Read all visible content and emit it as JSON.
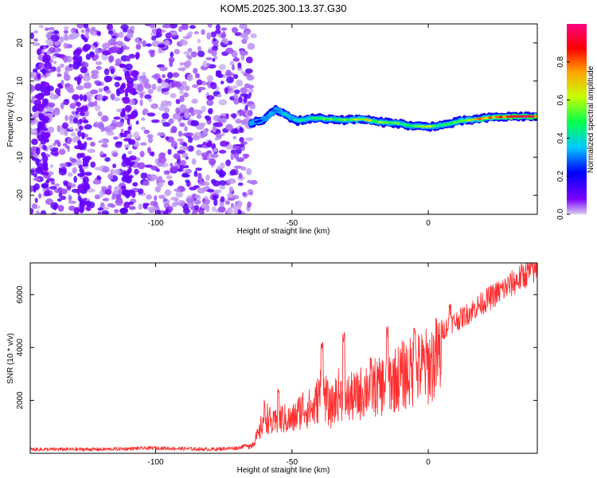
{
  "chart_data": [
    {
      "type": "heatmap",
      "title": "KOM5.2025.300.13.37.G30",
      "xlabel": "Height of straight line (km)",
      "ylabel": "Frequency (Hz)",
      "xlim": [
        -146,
        40
      ],
      "ylim": [
        -25,
        25
      ],
      "xticks": [
        -100,
        -50,
        0
      ],
      "yticks": [
        -20,
        -10,
        0,
        10,
        20
      ],
      "colorbar": {
        "label": "Normalized spectral amplitude",
        "range": [
          0,
          1
        ],
        "ticks": [
          "0.0",
          "0.2",
          "0.4",
          "0.6",
          "0.8"
        ],
        "colors": [
          "#d8d0f0",
          "#7a00ff",
          "#0000ff",
          "#00c8ff",
          "#00ff50",
          "#c8ff00",
          "#ffa000",
          "#ff0000",
          "#ff0080"
        ]
      },
      "noise_region": {
        "x_range": [
          -146,
          -64
        ],
        "y_range": [
          -25,
          25
        ],
        "level": 0.1
      },
      "noise_streaks": [
        {
          "x": -110,
          "y_range": [
            -25,
            15
          ],
          "level": 0.2
        },
        {
          "x": -127,
          "y_range": [
            -25,
            25
          ],
          "level": 0.2
        },
        {
          "x": -142,
          "y_range": [
            -20,
            20
          ],
          "level": 0.2
        }
      ],
      "signal_track": [
        {
          "x": -65,
          "freq": -1.2,
          "amp": 0.2
        },
        {
          "x": -60,
          "freq": 0.0,
          "amp": 0.3
        },
        {
          "x": -56,
          "freq": 2.5,
          "amp": 0.35
        },
        {
          "x": -52,
          "freq": 1.0,
          "amp": 0.4
        },
        {
          "x": -48,
          "freq": -0.5,
          "amp": 0.45
        },
        {
          "x": -42,
          "freq": 0.3,
          "amp": 0.5
        },
        {
          "x": -36,
          "freq": 0.0,
          "amp": 0.55
        },
        {
          "x": -30,
          "freq": -0.2,
          "amp": 0.6
        },
        {
          "x": -24,
          "freq": 0.0,
          "amp": 0.7
        },
        {
          "x": -18,
          "freq": -0.8,
          "amp": 0.6
        },
        {
          "x": -12,
          "freq": -1.0,
          "amp": 0.6
        },
        {
          "x": -6,
          "freq": -1.8,
          "amp": 0.5
        },
        {
          "x": 0,
          "freq": -2.0,
          "amp": 0.6
        },
        {
          "x": 6,
          "freq": -1.5,
          "amp": 0.55
        },
        {
          "x": 12,
          "freq": -0.5,
          "amp": 0.65
        },
        {
          "x": 18,
          "freq": 0.0,
          "amp": 0.75
        },
        {
          "x": 24,
          "freq": 0.5,
          "amp": 0.9
        },
        {
          "x": 32,
          "freq": 0.7,
          "amp": 0.95
        },
        {
          "x": 40,
          "freq": 0.7,
          "amp": 0.95
        }
      ]
    },
    {
      "type": "line",
      "xlabel": "Height of straight line (km)",
      "ylabel": "SNR (10 * v/v)",
      "xlim": [
        -146,
        40
      ],
      "ylim": [
        0,
        7200
      ],
      "xticks": [
        -100,
        -50,
        0
      ],
      "yticks": [
        2000,
        4000,
        6000
      ],
      "series": [
        {
          "name": "SNR",
          "color": "#ff3030",
          "x": [
            -146,
            -120,
            -100,
            -80,
            -70,
            -65,
            -62,
            -60,
            -57,
            -54,
            -50,
            -46,
            -42,
            -39,
            -36,
            -33,
            -30,
            -26,
            -22,
            -18,
            -15,
            -12,
            -9,
            -6,
            -3,
            0,
            4,
            8,
            12,
            16,
            20,
            26,
            32,
            36,
            40
          ],
          "y": [
            150,
            150,
            200,
            150,
            200,
            350,
            900,
            1800,
            1300,
            1600,
            1500,
            2100,
            2000,
            3000,
            2000,
            2700,
            2500,
            2600,
            3100,
            3000,
            3300,
            3400,
            3600,
            3700,
            3900,
            4000,
            4500,
            4900,
            5100,
            5400,
            5700,
            6100,
            6500,
            6800,
            7000
          ],
          "spikes": [
            {
              "x": -55,
              "y": 2500
            },
            {
              "x": -39,
              "y": 4400
            },
            {
              "x": -31,
              "y": 4600
            },
            {
              "x": -15,
              "y": 4800
            },
            {
              "x": -5,
              "y": 5000
            },
            {
              "x": 8,
              "y": 5800
            }
          ],
          "noise_amp": 0.1
        }
      ]
    }
  ]
}
